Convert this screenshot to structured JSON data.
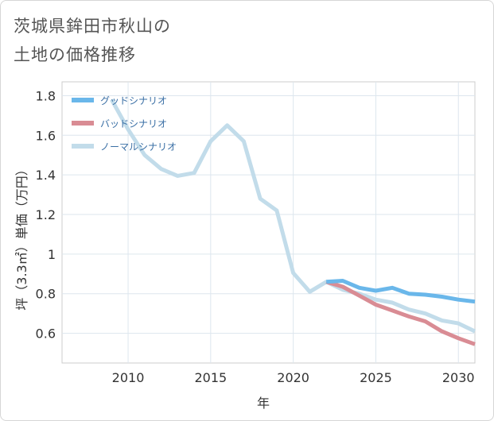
{
  "title": {
    "line1": "茨城県鉾田市秋山の",
    "line2": "土地の価格推移"
  },
  "chart_data": {
    "type": "line",
    "xlabel": "年",
    "ylabel": "坪（3.3㎡）単価（万円）",
    "xlim": [
      2006,
      2031
    ],
    "ylim": [
      0.45,
      1.87
    ],
    "xticks": [
      2010,
      2015,
      2020,
      2025,
      2030
    ],
    "yticks": [
      0.6,
      0.8,
      1,
      1.2,
      1.4,
      1.6,
      1.8
    ],
    "ytick_labels": [
      "0.6",
      "0.8",
      "1",
      "1.2",
      "1.4",
      "1.6",
      "1.8"
    ],
    "grid": true,
    "legend_position": "top-left",
    "series": [
      {
        "name": "グッドシナリオ",
        "color": "#6ab7ea",
        "points": [
          [
            2022,
            0.86
          ],
          [
            2023,
            0.865
          ],
          [
            2024,
            0.83
          ],
          [
            2025,
            0.815
          ],
          [
            2026,
            0.83
          ],
          [
            2027,
            0.8
          ],
          [
            2028,
            0.795
          ],
          [
            2029,
            0.785
          ],
          [
            2030,
            0.77
          ],
          [
            2031,
            0.76
          ]
        ]
      },
      {
        "name": "バッドシナリオ",
        "color": "#d98c94",
        "points": [
          [
            2022,
            0.86
          ],
          [
            2023,
            0.835
          ],
          [
            2024,
            0.79
          ],
          [
            2025,
            0.745
          ],
          [
            2026,
            0.715
          ],
          [
            2027,
            0.685
          ],
          [
            2028,
            0.66
          ],
          [
            2029,
            0.61
          ],
          [
            2030,
            0.575
          ],
          [
            2031,
            0.545
          ]
        ]
      },
      {
        "name": "ノーマルシナリオ",
        "color": "#c2dcea",
        "points": [
          [
            2009,
            1.78
          ],
          [
            2010,
            1.63
          ],
          [
            2011,
            1.5
          ],
          [
            2012,
            1.43
          ],
          [
            2013,
            1.395
          ],
          [
            2014,
            1.41
          ],
          [
            2015,
            1.57
          ],
          [
            2016,
            1.65
          ],
          [
            2017,
            1.57
          ],
          [
            2018,
            1.28
          ],
          [
            2019,
            1.22
          ],
          [
            2020,
            0.905
          ],
          [
            2021,
            0.81
          ],
          [
            2022,
            0.86
          ],
          [
            2023,
            0.82
          ],
          [
            2024,
            0.8
          ],
          [
            2025,
            0.77
          ],
          [
            2026,
            0.755
          ],
          [
            2027,
            0.72
          ],
          [
            2028,
            0.7
          ],
          [
            2029,
            0.665
          ],
          [
            2030,
            0.65
          ],
          [
            2031,
            0.61
          ]
        ]
      }
    ]
  }
}
